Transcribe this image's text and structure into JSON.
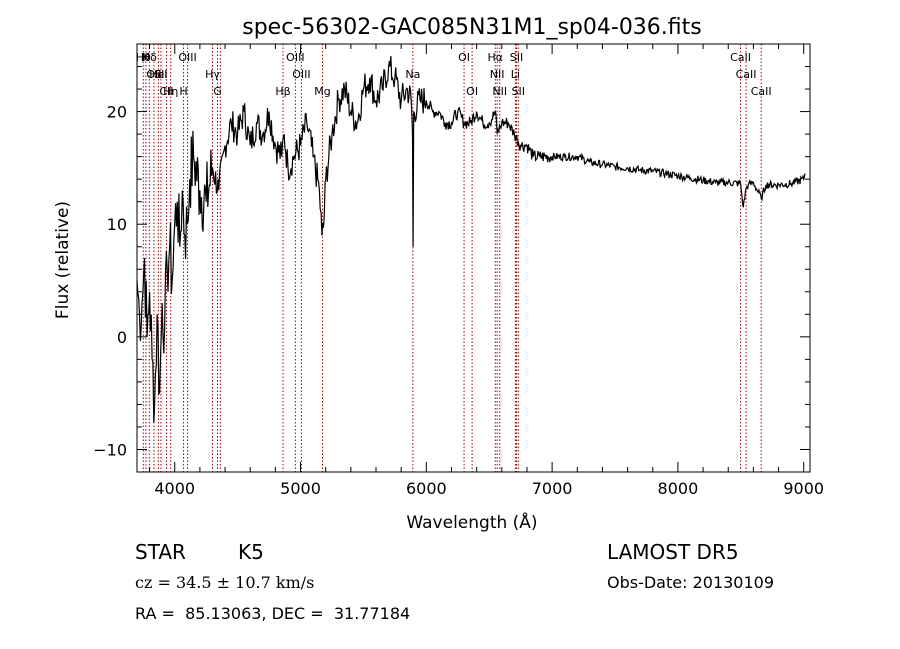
{
  "chart_data": {
    "type": "line",
    "title": "spec-56302-GAC085N31M1_sp04-036.fits",
    "xlabel": "Wavelength (Å)",
    "ylabel": "Flux (relative)",
    "xlim": [
      3700,
      9050
    ],
    "ylim": [
      -12,
      26
    ],
    "xticks": [
      4000,
      5000,
      6000,
      7000,
      8000,
      9000
    ],
    "yticks": [
      -10,
      0,
      10,
      20
    ],
    "grid": false,
    "line_color": "#000000",
    "marker_color": "#aa0000",
    "series": [
      {
        "x": [
          3700,
          3720,
          3740,
          3760,
          3780,
          3800,
          3820,
          3840,
          3860,
          3880,
          3900,
          3920,
          3940,
          3960,
          3980,
          4000,
          4020,
          4040,
          4060,
          4080,
          4100,
          4120,
          4150,
          4200,
          4250,
          4300,
          4350,
          4400,
          4450,
          4500,
          4550,
          4600,
          4650,
          4700,
          4750,
          4800,
          4850,
          4870,
          4900,
          4950,
          5000,
          5050,
          5100,
          5150,
          5170,
          5185,
          5200,
          5250,
          5300,
          5350,
          5400,
          5450,
          5500,
          5550,
          5600,
          5650,
          5700,
          5750,
          5800,
          5850,
          5880,
          5890,
          5895,
          5900,
          5950,
          6000,
          6050,
          6100,
          6150,
          6200,
          6250,
          6300,
          6350,
          6400,
          6450,
          6500,
          6550,
          6563,
          6600,
          6650,
          6700,
          6750,
          6800,
          6850,
          6900,
          7000,
          7100,
          7200,
          7300,
          7400,
          7500,
          7600,
          7700,
          7800,
          7900,
          8000,
          8100,
          8200,
          8300,
          8400,
          8498,
          8520,
          8542,
          8560,
          8600,
          8662,
          8700,
          8800,
          8900,
          9000,
          9010
        ],
        "values": [
          5,
          2,
          3,
          7,
          0,
          4,
          -2,
          -6,
          2,
          -5,
          3,
          1,
          6,
          8,
          5,
          10,
          12,
          8,
          13,
          9,
          10,
          14,
          16,
          13,
          12,
          15,
          13,
          17,
          19,
          18,
          20,
          17,
          19,
          18,
          20,
          17,
          16,
          18,
          15,
          16,
          17,
          19,
          16,
          13,
          9,
          10,
          14,
          18,
          21,
          22,
          20,
          19,
          22,
          23,
          21,
          22,
          24,
          23,
          21,
          22,
          21,
          18,
          8,
          20,
          21,
          21,
          20,
          20,
          19,
          19,
          20,
          19,
          19,
          20,
          19,
          19,
          20,
          18,
          19,
          19,
          18,
          17,
          17,
          16,
          16,
          16,
          16,
          16,
          15.5,
          15.3,
          15.1,
          15,
          14.8,
          14.7,
          14.5,
          14.3,
          14.1,
          13.9,
          13.7,
          13.7,
          13.6,
          11.5,
          13.2,
          13.5,
          13.7,
          12.3,
          13.5,
          13.5,
          13.6,
          14,
          14.5
        ]
      }
    ],
    "lines": [
      {
        "x": 3750,
        "label": "Hθ",
        "row": 0
      },
      {
        "x": 3771,
        "label": "K",
        "row": 0
      },
      {
        "x": 3798,
        "label": "Hδ",
        "row": 0
      },
      {
        "x": 3835,
        "label": "OII",
        "row": 1
      },
      {
        "x": 3870,
        "label": "HeI",
        "row": 1
      },
      {
        "x": 3890,
        "label": "SII",
        "row": 1
      },
      {
        "x": 3934,
        "label": "CII",
        "row": 2
      },
      {
        "x": 3968,
        "label": "Hη",
        "row": 2
      },
      {
        "x": 4070,
        "label": "H",
        "row": 2
      },
      {
        "x": 4102,
        "label": "OIII",
        "row": 0
      },
      {
        "x": 4300,
        "label": "Hγ",
        "row": 1
      },
      {
        "x": 4340,
        "label": "G",
        "row": 2
      },
      {
        "x": 4363,
        "label": "",
        "row": 0
      },
      {
        "x": 4861,
        "label": "Hβ",
        "row": 2
      },
      {
        "x": 4959,
        "label": "OIII",
        "row": 0
      },
      {
        "x": 5007,
        "label": "OIII",
        "row": 1
      },
      {
        "x": 5175,
        "label": "Mg",
        "row": 2
      },
      {
        "x": 5893,
        "label": "Na",
        "row": 1
      },
      {
        "x": 6300,
        "label": "OI",
        "row": 0
      },
      {
        "x": 6364,
        "label": "OI",
        "row": 2
      },
      {
        "x": 6548,
        "label": "Hα",
        "row": 0
      },
      {
        "x": 6563,
        "label": "NII",
        "row": 1
      },
      {
        "x": 6584,
        "label": "NII",
        "row": 2
      },
      {
        "x": 6708,
        "label": "Li",
        "row": 1
      },
      {
        "x": 6717,
        "label": "SII",
        "row": 0
      },
      {
        "x": 6731,
        "label": "SII",
        "row": 2
      },
      {
        "x": 8498,
        "label": "CaII",
        "row": 0
      },
      {
        "x": 8542,
        "label": "CaII",
        "row": 1
      },
      {
        "x": 8662,
        "label": "CaII",
        "row": 2
      }
    ]
  },
  "info": {
    "class_label": "STAR",
    "subclass": "K5",
    "survey": "LAMOST DR5",
    "cz_text": "cz = 34.5 ± 10.7 km/s",
    "obs_date": "Obs-Date: 20130109",
    "radec": "RA =  85.13063, DEC =  31.77184"
  }
}
